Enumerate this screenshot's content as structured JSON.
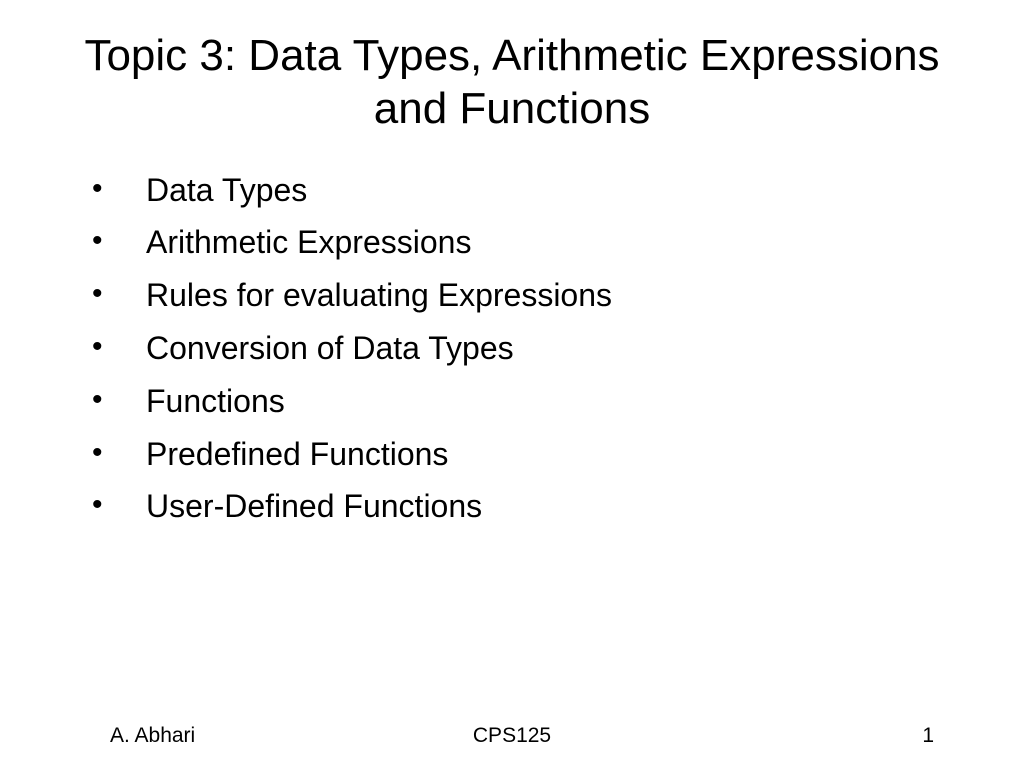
{
  "title": "Topic 3: Data Types, Arithmetic Expressions and Functions",
  "bullets": {
    "item0": "Data Types",
    "item1": "Arithmetic Expressions",
    "item2": "Rules for evaluating Expressions",
    "item3": "Conversion of Data Types",
    "item4": "Functions",
    "item5": "Predefined Functions",
    "item6": "User-Defined Functions"
  },
  "footer": {
    "author": "A. Abhari",
    "course": "CPS125",
    "page": "1"
  },
  "style": {
    "background_color": "#ffffff",
    "text_color": "#000000",
    "title_fontsize": 44,
    "bullet_fontsize": 32,
    "footer_fontsize": 21,
    "font_family": "Arial"
  }
}
